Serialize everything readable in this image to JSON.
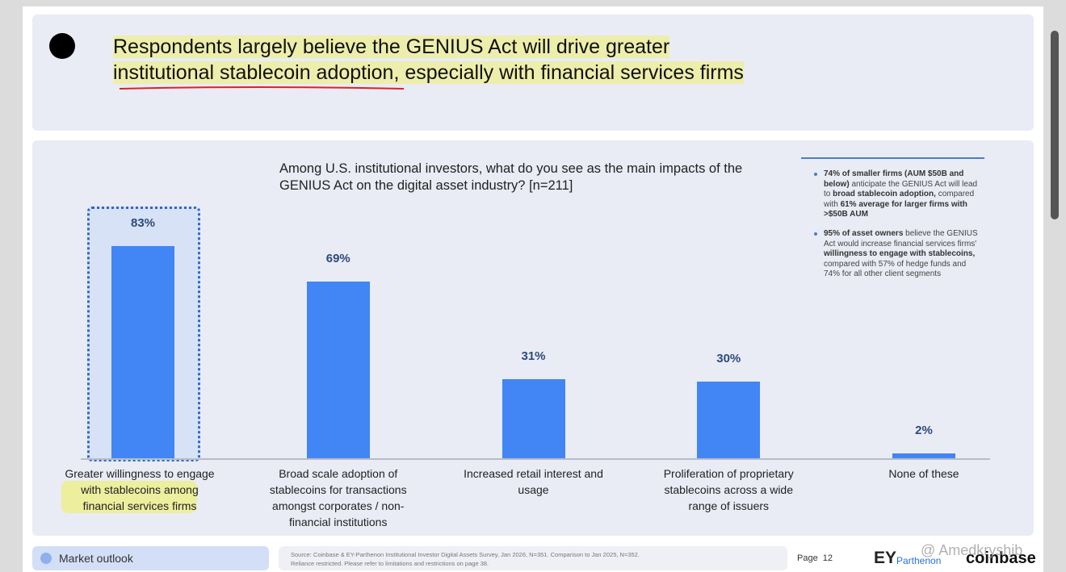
{
  "slide": {
    "headline": [
      "Respondents largely believe the GENIUS Act will drive greater",
      "institutional stablecoin adoption, especially with financial services firms"
    ],
    "notes": [
      [
        "74% of smaller firms (AUM $50B and below)",
        " anticipate the GENIUS Act will lead to ",
        "broad stablecoin adoption,",
        " compared with ",
        "61% average for larger firms with >$50B AUM"
      ],
      [
        "95% of asset owners",
        " believe the GENIUS Act would increase financial services firms' ",
        "willingness to engage with stablecoins,",
        " compared with 57% of hedge funds and 74% for all other client segments"
      ]
    ],
    "footer": {
      "section": "Market outlook",
      "source": [
        "Source: Coinbase & EY-Parthenon Institutional Investor Digital Assets Survey, Jan 2026, N=351. Comparison to Jan 2025, N=352.",
        "Reliance restricted. Please refer to limitations and restrictions on page 38."
      ],
      "page": "Page  12",
      "logos": [
        "EY",
        "Parthenon",
        "coinbase"
      ],
      "watermark": "@ Amedkryshib"
    }
  },
  "chart_data": {
    "type": "bar",
    "title": "Among U.S. institutional investors, what do you see as the main impacts of the GENIUS Act on the digital asset industry? [n=211]",
    "categories": [
      "Greater willingness to engage with stablecoins among financial services firms",
      "Broad scale adoption of stablecoins for transactions amongst corporates / non-financial institutions",
      "Increased retail interest and usage",
      "Proliferation of proprietary stablecoins across a wide range of issuers",
      "None of these"
    ],
    "values": [
      83,
      69,
      31,
      30,
      2
    ],
    "value_labels": [
      "83%",
      "69%",
      "31%",
      "30%",
      "2%"
    ],
    "color": "#4285f4"
  }
}
